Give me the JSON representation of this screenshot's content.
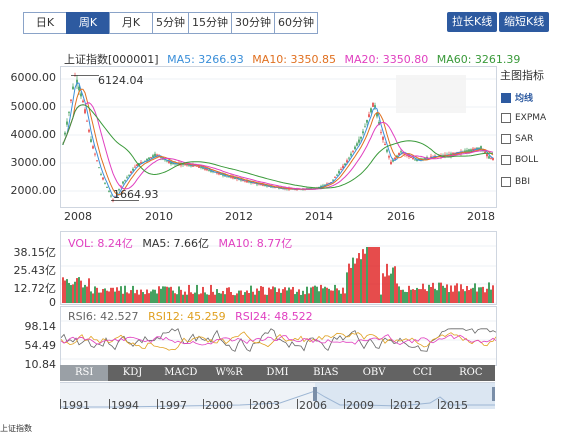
{
  "tabs": {
    "period": [
      {
        "label": "日K",
        "active": false
      },
      {
        "label": "周K",
        "active": true
      },
      {
        "label": "月K",
        "active": false
      }
    ],
    "minute": [
      "5分钟",
      "15分钟",
      "30分钟",
      "60分钟"
    ]
  },
  "buttons": {
    "stretch": "拉长K线",
    "shrink": "缩短K线"
  },
  "info": {
    "index_name": "上证指数[000001]",
    "ma5": "MA5: 3266.93",
    "ma10": "MA10: 3350.85",
    "ma20": "MA20: 3350.80",
    "ma60": "MA60: 3261.39"
  },
  "colors": {
    "accent": "#2d5aa0",
    "ma5": "#3b8fd9",
    "ma10": "#e07020",
    "ma20": "#e040c0",
    "ma60": "#3a9a3a",
    "up": "#e02020",
    "down": "#1a8a3a"
  },
  "main_chart": {
    "y_ticks": [
      "6000.00",
      "5000.00",
      "4000.00",
      "3000.00",
      "2000.00"
    ],
    "x_ticks": [
      "2008",
      "2010",
      "2012",
      "2014",
      "2016",
      "2018"
    ],
    "max_label": "6124.04",
    "min_label": "1664.93"
  },
  "indicators": {
    "title": "主图指标",
    "items": [
      {
        "label": "均线",
        "checked": true
      },
      {
        "label": "EXPMA",
        "checked": false
      },
      {
        "label": "SAR",
        "checked": false
      },
      {
        "label": "BOLL",
        "checked": false
      },
      {
        "label": "BBI",
        "checked": false
      }
    ]
  },
  "volume": {
    "vol": "VOL: 8.24亿",
    "ma5": "MA5: 7.66亿",
    "ma10": "MA10: 8.77亿",
    "y_ticks": [
      "38.15亿",
      "25.43亿",
      "12.72亿",
      "0"
    ]
  },
  "rsi": {
    "rsi6": "RSI6: 42.527",
    "rsi12": "RSI12: 45.259",
    "rsi24": "RSI24: 48.522",
    "y_ticks": [
      "98.14",
      "54.49",
      "10.84"
    ]
  },
  "indicator_tabs": [
    {
      "label": "RSI",
      "active": true
    },
    {
      "label": "KDJ",
      "active": false
    },
    {
      "label": "MACD",
      "active": false
    },
    {
      "label": "W%R",
      "active": false
    },
    {
      "label": "DMI",
      "active": false
    },
    {
      "label": "BIAS",
      "active": false
    },
    {
      "label": "OBV",
      "active": false
    },
    {
      "label": "CCI",
      "active": false
    },
    {
      "label": "ROC",
      "active": false
    }
  ],
  "timeline": {
    "years": [
      "1991",
      "1994",
      "1997",
      "2000",
      "2003",
      "2006",
      "2009",
      "2012",
      "2015"
    ]
  },
  "bottom_note": "上证指数"
}
